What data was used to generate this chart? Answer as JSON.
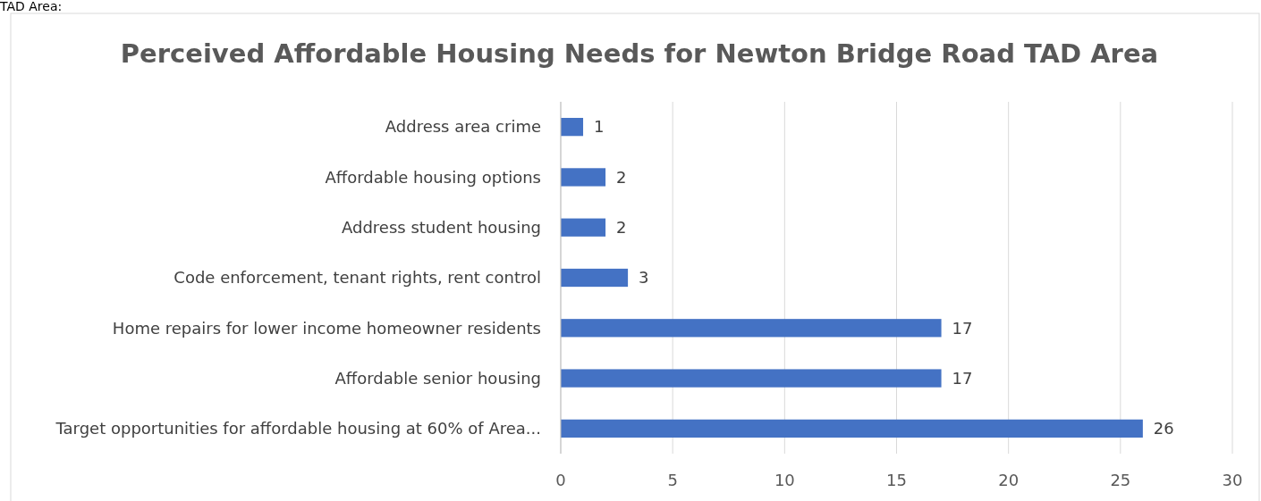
{
  "chart_data": {
    "type": "bar",
    "orientation": "horizontal",
    "title": "Perceived Affordable Housing Needs for Newton Bridge Road TAD Area",
    "categories": [
      "Address area crime",
      "Affordable housing options",
      "Address student housing",
      "Code enforcement, tenant rights, rent control",
      "Home repairs for lower income homeowner residents",
      "Affordable senior housing",
      "Target opportunities for affordable housing at 60% of Area..."
    ],
    "values": [
      1,
      2,
      2,
      3,
      17,
      17,
      26
    ],
    "color": "#4472c4",
    "xlim": [
      0,
      30
    ],
    "xticks": [
      0,
      5,
      10,
      15,
      20,
      25,
      30
    ],
    "grid": "x",
    "data_labels": true,
    "annotations": [
      "TAD Area:"
    ]
  }
}
